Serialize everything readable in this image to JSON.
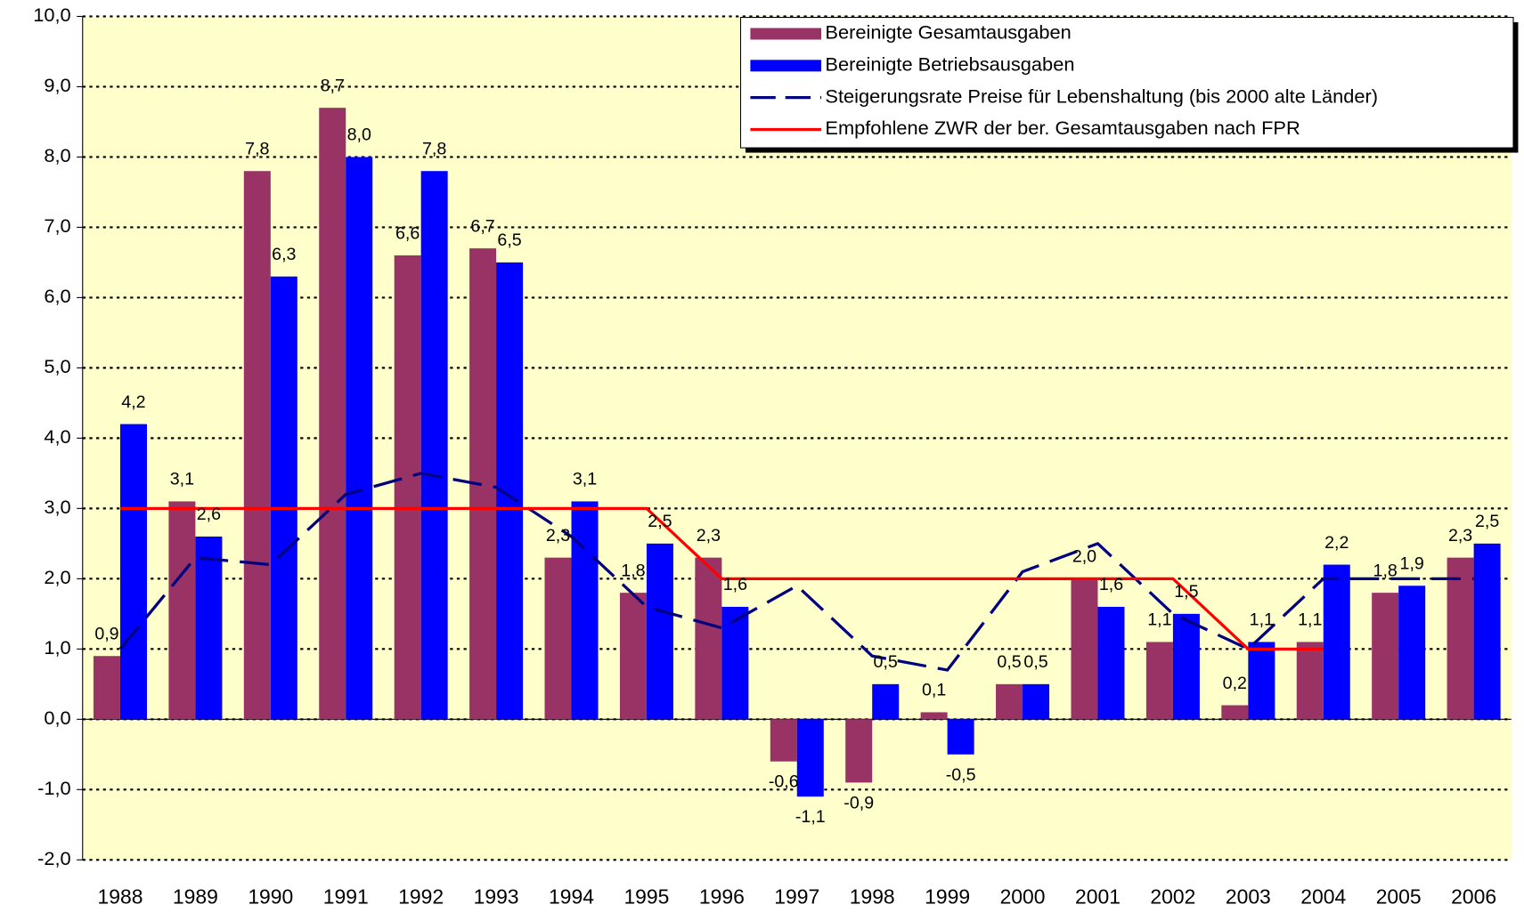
{
  "chart_data": {
    "type": "bar",
    "categories": [
      "1988",
      "1989",
      "1990",
      "1991",
      "1992",
      "1993",
      "1994",
      "1995",
      "1996",
      "1997",
      "1998",
      "1999",
      "2000",
      "2001",
      "2002",
      "2003",
      "2004",
      "2005",
      "2006"
    ],
    "series": [
      {
        "name": "Bereinigte Gesamtausgaben",
        "color": "#993366",
        "type": "bar",
        "values": [
          0.9,
          3.1,
          7.8,
          8.7,
          6.6,
          6.7,
          2.3,
          1.8,
          2.3,
          -0.6,
          -0.9,
          0.1,
          0.5,
          2.0,
          1.1,
          0.2,
          1.1,
          1.8,
          2.3
        ],
        "value_labels": [
          "0,9",
          "3,1",
          "7,8",
          "8,7",
          "6,6",
          "6,7",
          "2,3",
          "1,8",
          "2,3",
          "-0,6",
          "-0,9",
          "0,1",
          "0,5",
          "2,0",
          "1,1",
          "0,2",
          "1,1",
          "1,8",
          "2,3"
        ]
      },
      {
        "name": "Bereinigte Betriebsausgaben",
        "color": "#0000ff",
        "type": "bar",
        "values": [
          4.2,
          2.6,
          6.3,
          8.0,
          7.8,
          6.5,
          3.1,
          2.5,
          1.6,
          -1.1,
          0.5,
          -0.5,
          0.5,
          1.6,
          1.5,
          1.1,
          2.2,
          1.9,
          2.5
        ],
        "value_labels": [
          "4,2",
          "2,6",
          "6,3",
          "8,0",
          "7,8",
          "6,5",
          "3,1",
          "2,5",
          "1,6",
          "-1,1",
          "0,5",
          "-0,5",
          "0,5",
          "1,6",
          "1,5",
          "1,1",
          "2,2",
          "1,9",
          "2,5"
        ]
      },
      {
        "name": "Steigerungsrate Preise für Lebenshaltung (bis 2000 alte Länder)",
        "color": "#000080",
        "type": "line",
        "dashed": true,
        "values": [
          1.0,
          2.3,
          2.2,
          3.2,
          3.5,
          3.3,
          2.6,
          1.6,
          1.3,
          1.9,
          0.9,
          0.7,
          2.1,
          2.5,
          1.5,
          1.0,
          2.0,
          2.0,
          2.0
        ]
      },
      {
        "name": "Empfohlene ZWR der ber. Gesamtausgaben nach FPR",
        "color": "#ff0000",
        "type": "line",
        "dashed": false,
        "values": [
          3.0,
          3.0,
          3.0,
          3.0,
          3.0,
          3.0,
          3.0,
          3.0,
          2.0,
          2.0,
          2.0,
          2.0,
          2.0,
          2.0,
          2.0,
          1.0,
          1.0,
          null,
          null
        ]
      }
    ],
    "ylim": [
      -2,
      10
    ],
    "yticks": [
      {
        "value": -2,
        "label": "-2,0"
      },
      {
        "value": -1,
        "label": "-1,0"
      },
      {
        "value": 0,
        "label": "0,0"
      },
      {
        "value": 1,
        "label": "1,0"
      },
      {
        "value": 2,
        "label": "2,0"
      },
      {
        "value": 3,
        "label": "3,0"
      },
      {
        "value": 4,
        "label": "4,0"
      },
      {
        "value": 5,
        "label": "5,0"
      },
      {
        "value": 6,
        "label": "6,0"
      },
      {
        "value": 7,
        "label": "7,0"
      },
      {
        "value": 8,
        "label": "8,0"
      },
      {
        "value": 9,
        "label": "9,0"
      },
      {
        "value": 10,
        "label": "10,0"
      }
    ],
    "grid": true,
    "legend": "top-right",
    "background": "#ffffcc"
  }
}
